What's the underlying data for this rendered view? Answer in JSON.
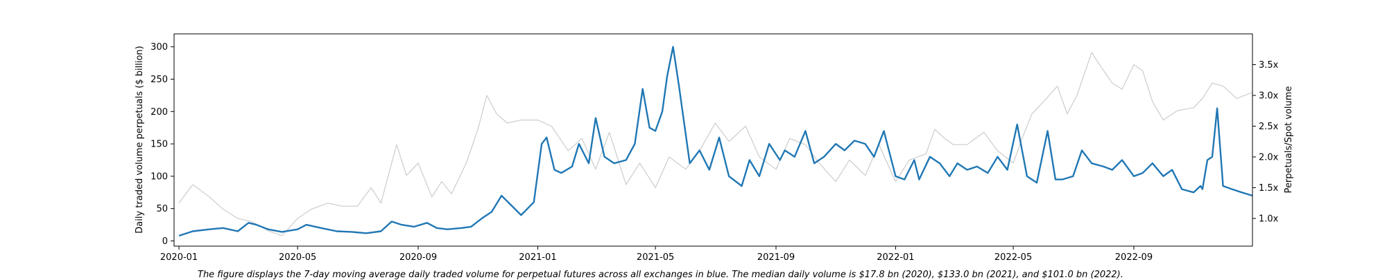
{
  "chart_data": {
    "type": "line",
    "title": "",
    "xlabel": "",
    "ylabel": "Daily traded volume perpetuals ($ billion)",
    "y2label": "Perpetuals/Spot volume",
    "x_ticks": [
      "2020-01",
      "2020-05",
      "2020-09",
      "2021-01",
      "2021-05",
      "2021-09",
      "2022-01",
      "2022-05",
      "2022-09"
    ],
    "ylim": [
      -8,
      320
    ],
    "y_ticks": [
      0,
      50,
      100,
      150,
      200,
      250,
      300
    ],
    "y2lim": [
      0.55,
      4.0
    ],
    "y2_ticks": [
      "1.0x",
      "1.5x",
      "2.0x",
      "2.5x",
      "3.0x",
      "3.5x"
    ],
    "y2_tick_values": [
      1.0,
      1.5,
      2.0,
      2.5,
      3.0,
      3.5
    ],
    "grid": false,
    "colors": {
      "perpetuals": "#1f77b4",
      "ratio": "#cccccc"
    },
    "series": [
      {
        "axis": "left",
        "x": [
          "2020-01-01",
          "2020-01-15",
          "2020-02-01",
          "2020-02-15",
          "2020-03-01",
          "2020-03-12",
          "2020-03-20",
          "2020-04-01",
          "2020-04-15",
          "2020-05-01",
          "2020-05-10",
          "2020-05-25",
          "2020-06-10",
          "2020-06-25",
          "2020-07-10",
          "2020-07-25",
          "2020-08-05",
          "2020-08-15",
          "2020-08-28",
          "2020-09-10",
          "2020-09-20",
          "2020-10-01",
          "2020-10-15",
          "2020-10-25",
          "2020-11-05",
          "2020-11-15",
          "2020-11-25",
          "2020-12-05",
          "2020-12-15",
          "2020-12-28",
          "2021-01-05",
          "2021-01-10",
          "2021-01-18",
          "2021-01-25",
          "2021-02-05",
          "2021-02-12",
          "2021-02-22",
          "2021-03-01",
          "2021-03-10",
          "2021-03-20",
          "2021-04-01",
          "2021-04-10",
          "2021-04-18",
          "2021-04-25",
          "2021-05-01",
          "2021-05-08",
          "2021-05-13",
          "2021-05-19",
          "2021-05-25",
          "2021-06-05",
          "2021-06-15",
          "2021-06-25",
          "2021-07-05",
          "2021-07-15",
          "2021-07-28",
          "2021-08-05",
          "2021-08-15",
          "2021-08-25",
          "2021-09-05",
          "2021-09-10",
          "2021-09-20",
          "2021-10-01",
          "2021-10-10",
          "2021-10-20",
          "2021-11-01",
          "2021-11-10",
          "2021-11-20",
          "2021-12-01",
          "2021-12-10",
          "2021-12-20",
          "2022-01-01",
          "2022-01-10",
          "2022-01-20",
          "2022-01-25",
          "2022-02-05",
          "2022-02-15",
          "2022-02-25",
          "2022-03-05",
          "2022-03-15",
          "2022-03-25",
          "2022-04-05",
          "2022-04-15",
          "2022-04-25",
          "2022-05-05",
          "2022-05-10",
          "2022-05-15",
          "2022-05-25",
          "2022-06-05",
          "2022-06-13",
          "2022-06-20",
          "2022-07-01",
          "2022-07-10",
          "2022-07-20",
          "2022-08-01",
          "2022-08-10",
          "2022-08-20",
          "2022-09-01",
          "2022-09-10",
          "2022-09-20",
          "2022-10-01",
          "2022-10-10",
          "2022-10-20",
          "2022-11-01",
          "2022-11-08",
          "2022-11-10",
          "2022-11-15",
          "2022-11-20",
          "2022-11-25",
          "2022-12-01",
          "2022-12-10",
          "2022-12-20",
          "2022-12-31"
        ],
        "values": [
          8,
          15,
          18,
          20,
          15,
          28,
          25,
          18,
          14,
          18,
          25,
          20,
          15,
          14,
          12,
          15,
          30,
          25,
          22,
          28,
          20,
          18,
          20,
          22,
          35,
          45,
          70,
          55,
          40,
          60,
          150,
          160,
          110,
          105,
          115,
          150,
          120,
          190,
          130,
          120,
          125,
          150,
          235,
          175,
          170,
          200,
          255,
          300,
          240,
          120,
          140,
          110,
          160,
          100,
          85,
          125,
          100,
          150,
          125,
          140,
          130,
          170,
          120,
          130,
          150,
          140,
          155,
          150,
          130,
          170,
          100,
          95,
          125,
          95,
          130,
          120,
          100,
          120,
          110,
          115,
          105,
          130,
          110,
          180,
          140,
          100,
          90,
          170,
          95,
          95,
          100,
          140,
          120,
          115,
          110,
          125,
          100,
          105,
          120,
          100,
          110,
          80,
          75,
          85,
          80,
          125,
          130,
          205,
          85,
          80,
          75,
          70
        ]
      },
      {
        "axis": "right",
        "x": [
          "2020-01-01",
          "2020-01-15",
          "2020-02-01",
          "2020-02-15",
          "2020-03-01",
          "2020-03-15",
          "2020-04-01",
          "2020-04-15",
          "2020-05-01",
          "2020-05-15",
          "2020-06-01",
          "2020-06-15",
          "2020-07-01",
          "2020-07-15",
          "2020-07-25",
          "2020-08-10",
          "2020-08-20",
          "2020-09-01",
          "2020-09-15",
          "2020-09-25",
          "2020-10-05",
          "2020-10-20",
          "2020-11-01",
          "2020-11-10",
          "2020-11-20",
          "2020-12-01",
          "2020-12-15",
          "2021-01-01",
          "2021-01-15",
          "2021-02-01",
          "2021-02-15",
          "2021-03-01",
          "2021-03-15",
          "2021-04-01",
          "2021-04-15",
          "2021-05-01",
          "2021-05-15",
          "2021-06-01",
          "2021-06-15",
          "2021-07-01",
          "2021-07-15",
          "2021-08-01",
          "2021-08-15",
          "2021-09-01",
          "2021-09-15",
          "2021-10-01",
          "2021-10-15",
          "2021-11-01",
          "2021-11-15",
          "2021-12-01",
          "2021-12-15",
          "2022-01-01",
          "2022-01-15",
          "2022-02-01",
          "2022-02-10",
          "2022-02-20",
          "2022-03-01",
          "2022-03-15",
          "2022-04-01",
          "2022-04-15",
          "2022-05-01",
          "2022-05-10",
          "2022-05-20",
          "2022-06-01",
          "2022-06-15",
          "2022-06-25",
          "2022-07-05",
          "2022-07-20",
          "2022-07-28",
          "2022-08-10",
          "2022-08-20",
          "2022-09-01",
          "2022-09-10",
          "2022-09-20",
          "2022-10-01",
          "2022-10-15",
          "2022-11-01",
          "2022-11-10",
          "2022-11-20",
          "2022-12-01",
          "2022-12-15",
          "2022-12-31"
        ],
        "values": [
          1.25,
          1.55,
          1.35,
          1.15,
          1.0,
          0.95,
          0.8,
          0.72,
          1.0,
          1.15,
          1.25,
          1.2,
          1.2,
          1.5,
          1.25,
          2.2,
          1.7,
          1.9,
          1.35,
          1.6,
          1.4,
          1.9,
          2.45,
          3.0,
          2.7,
          2.55,
          2.6,
          2.6,
          2.5,
          2.1,
          2.3,
          1.8,
          2.4,
          1.55,
          1.9,
          1.5,
          2.0,
          1.8,
          2.1,
          2.55,
          2.25,
          2.5,
          2.0,
          1.8,
          2.3,
          2.2,
          1.9,
          1.6,
          1.95,
          1.7,
          2.2,
          1.6,
          1.95,
          2.05,
          2.45,
          2.3,
          2.2,
          2.2,
          2.4,
          2.1,
          1.9,
          2.3,
          2.7,
          2.9,
          3.15,
          2.7,
          3.0,
          3.7,
          3.5,
          3.2,
          3.1,
          3.5,
          3.4,
          2.9,
          2.6,
          2.75,
          2.8,
          2.95,
          3.2,
          3.15,
          2.95,
          3.05
        ]
      }
    ]
  },
  "caption": "The figure displays the 7-day moving average daily traded volume for perpetual futures across all exchanges in blue. The median daily volume is $17.8 bn (2020), $133.0 bn (2021), and $101.0 bn (2022)."
}
